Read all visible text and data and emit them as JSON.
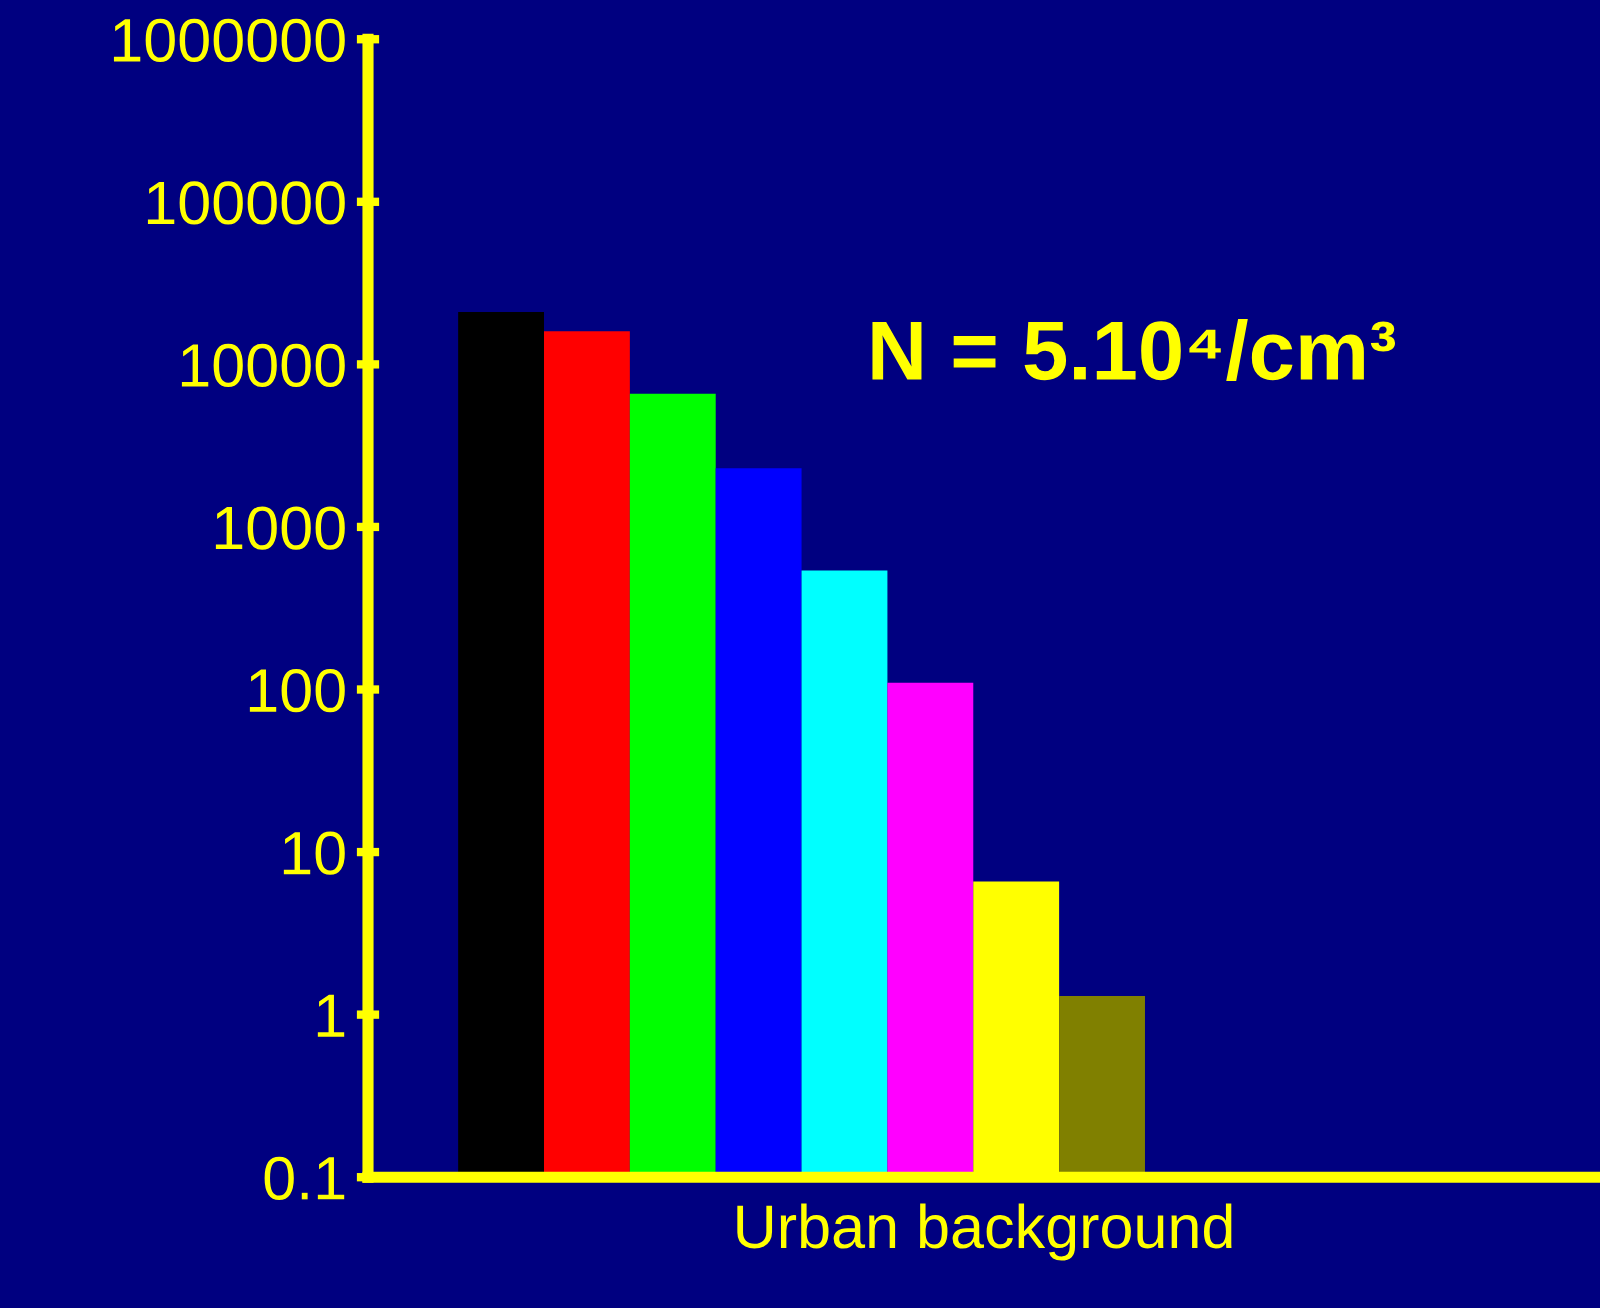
{
  "chart_data": {
    "type": "bar",
    "xlabel": "Urban background",
    "categories": [
      null,
      null,
      null,
      null,
      null,
      null,
      null,
      null
    ],
    "values": [
      21000,
      16000,
      6600,
      2300,
      540,
      110,
      6.6,
      1.3
    ],
    "colors": [
      "#000000",
      "#ff0000",
      "#00ff00",
      "#0000ff",
      "#00ffff",
      "#ff00ff",
      "#ffff00",
      "#808000"
    ],
    "log": "y",
    "ylim": [
      0.1,
      1000000
    ],
    "yticks": [
      0.1,
      1,
      10,
      100,
      1000,
      10000,
      100000,
      1000000
    ],
    "grid": false,
    "legend": false,
    "annotations": [
      "N = 5.10⁴/cm³"
    ]
  }
}
